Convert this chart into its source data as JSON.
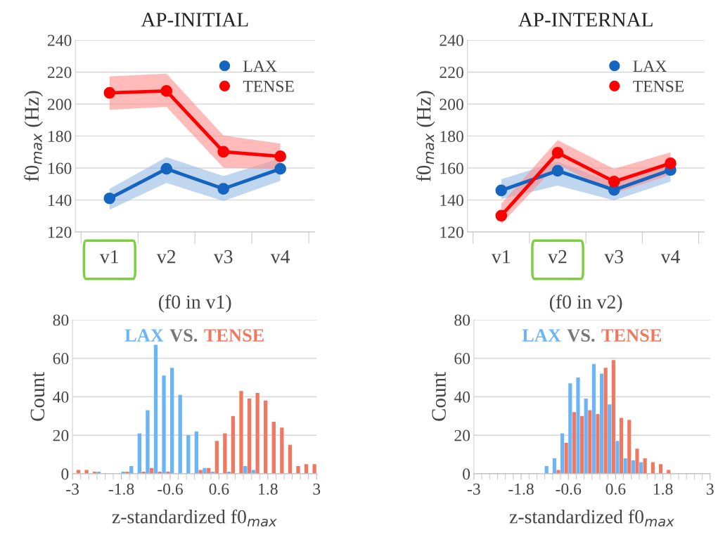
{
  "chart_data": [
    {
      "type": "line",
      "title": "AP-INITIAL",
      "xlabel": "(f0 in v1)",
      "ylabel": "f0$_{max}$ (Hz)",
      "categories": [
        "v1",
        "v2",
        "v3",
        "v4"
      ],
      "series": [
        {
          "name": "LAX",
          "color": "#1565c0",
          "values": [
            141,
            159.5,
            147,
            159.5
          ],
          "lower": [
            134,
            150.7,
            139.3,
            152
          ],
          "upper": [
            147,
            166.8,
            155,
            166
          ]
        },
        {
          "name": "TENSE",
          "color": "#ff0000",
          "values": [
            207,
            208.2,
            170.2,
            167.3
          ],
          "lower": [
            196.4,
            198.3,
            160.2,
            159.5
          ],
          "upper": [
            217.3,
            219,
            180.3,
            175.3
          ]
        }
      ],
      "ylim": [
        120,
        240
      ],
      "yticks": [
        120,
        140,
        160,
        180,
        200,
        220,
        240
      ],
      "grid": "y",
      "legend": "top right",
      "marker": "circle"
    },
    {
      "type": "line",
      "title": "AP-INTERNAL",
      "xlabel": "(f0 in v2)",
      "ylabel": "f0$_{max}$ (Hz)",
      "categories": [
        "v1",
        "v2",
        "v3",
        "v4"
      ],
      "series": [
        {
          "name": "LAX",
          "color": "#1565c0",
          "values": [
            146,
            158.3,
            146.3,
            158.8
          ],
          "lower": [
            140.5,
            149,
            139.8,
            151.5
          ],
          "upper": [
            153,
            164,
            150.7,
            164
          ]
        },
        {
          "name": "TENSE",
          "color": "#ff0000",
          "values": [
            130.2,
            169.5,
            151.5,
            162.9
          ],
          "lower": [
            125,
            162.4,
            144.1,
            155.8
          ],
          "upper": [
            137.6,
            177.5,
            159.5,
            169.8
          ]
        }
      ],
      "ylim": [
        120,
        240
      ],
      "yticks": [
        120,
        140,
        160,
        180,
        200,
        220,
        240
      ],
      "grid": "y",
      "legend": "top right",
      "marker": "circle"
    },
    {
      "type": "histogram",
      "xlabel": "z-standardized f0$_{max}$",
      "ylabel": "Count",
      "annotations": [
        "VS."
      ],
      "bins": [
        -3,
        -2.8,
        -2.6,
        -2.4,
        -2.2,
        -2,
        -1.8,
        -1.6,
        -1.4,
        -1.2,
        -1,
        -0.8,
        -0.6,
        -0.4,
        -0.2,
        0,
        0.2,
        0.4,
        0.6,
        0.8,
        1,
        1.2,
        1.4,
        1.6,
        1.8,
        2,
        2.2,
        2.4,
        2.6,
        2.8,
        3
      ],
      "series": [
        {
          "name": "LAX",
          "color": "#6ab4f8",
          "values": [
            0,
            0,
            0,
            1,
            0,
            0,
            1,
            4,
            21,
            33,
            67,
            51,
            55,
            41,
            20,
            22,
            3,
            1,
            0,
            1,
            0,
            4,
            2,
            0,
            0,
            0,
            0,
            0,
            0,
            0
          ]
        },
        {
          "name": "TENSE",
          "color": "#f07860",
          "values": [
            2,
            2,
            1,
            0,
            0,
            0,
            1,
            0,
            1,
            3,
            1,
            1,
            0,
            0,
            0,
            2,
            3,
            17,
            21,
            30,
            43,
            39,
            42,
            38,
            27,
            24,
            15,
            4,
            5,
            5
          ]
        }
      ],
      "xlim": [
        -3,
        3
      ],
      "xticks": [
        -3,
        -1.8,
        -0.6,
        0.6,
        1.8,
        3
      ],
      "ylim": [
        0,
        80
      ],
      "yticks": [
        0,
        20,
        40,
        60,
        80
      ],
      "grid": "y",
      "legend": "top"
    },
    {
      "type": "histogram",
      "xlabel": "z-standardized f0$_{max}$",
      "ylabel": "Count",
      "annotations": [
        "VS."
      ],
      "bins": [
        -3,
        -2.8,
        -2.6,
        -2.4,
        -2.2,
        -2,
        -1.8,
        -1.6,
        -1.4,
        -1.2,
        -1,
        -0.8,
        -0.6,
        -0.4,
        -0.2,
        0,
        0.2,
        0.4,
        0.6,
        0.8,
        1,
        1.2,
        1.4,
        1.6,
        1.8,
        2,
        2.2,
        2.4,
        2.6,
        2.8,
        3
      ],
      "series": [
        {
          "name": "LAX",
          "color": "#6ab4f8",
          "values": [
            0,
            0,
            0,
            0,
            0,
            0,
            0,
            0,
            0,
            4,
            8,
            21,
            47,
            50,
            39,
            57,
            52,
            36,
            17,
            8,
            7,
            6,
            0,
            0,
            0,
            0,
            0,
            0,
            0,
            0
          ]
        },
        {
          "name": "TENSE",
          "color": "#f07860",
          "values": [
            0,
            0,
            0,
            0,
            0,
            0,
            0,
            0,
            0,
            0,
            2,
            16,
            32,
            30,
            33,
            31,
            55,
            59,
            29,
            28,
            13,
            8,
            6,
            5,
            2,
            0,
            0,
            0,
            0,
            0
          ]
        }
      ],
      "xlim": [
        -3,
        3
      ],
      "xticks": [
        -3,
        -1.8,
        -0.6,
        0.6,
        1.8,
        3
      ],
      "ylim": [
        0,
        80
      ],
      "yticks": [
        0,
        20,
        40,
        60,
        80
      ],
      "grid": "y",
      "legend": "top"
    }
  ]
}
